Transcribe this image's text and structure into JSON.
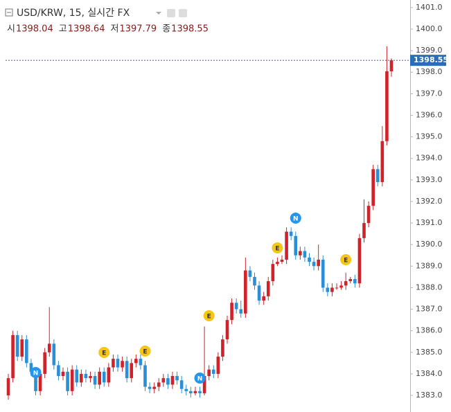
{
  "chart_data": {
    "type": "candlestick",
    "title": "USD/KRW, 15, 실시간 FX",
    "ohlc_labels": [
      "시",
      "고",
      "저",
      "종"
    ],
    "open": [
      1383.0,
      1383.8,
      1385.8,
      1384.8,
      1385.6,
      1384.5,
      1384.1,
      1383.2,
      1384.0,
      1385.0,
      1385.4,
      1384.4,
      1383.9,
      1384.1,
      1383.2,
      1384.2,
      1383.6,
      1384.0,
      1383.8,
      1383.9,
      1383.5,
      1384.1,
      1383.6,
      1384.3,
      1384.7,
      1384.3,
      1384.6,
      1383.8,
      1384.5,
      1384.7,
      1384.4,
      1383.4,
      1383.3,
      1383.4,
      1383.6,
      1383.8,
      1383.5,
      1383.9,
      1383.7,
      1383.3,
      1383.2,
      1383.1,
      1383.2,
      1383.1,
      1383.9,
      1384.2,
      1384.0,
      1384.8,
      1385.6,
      1386.5,
      1387.3,
      1387.0,
      1386.8,
      1388.8,
      1388.5,
      1388.1,
      1387.4,
      1387.6,
      1388.3,
      1389.1,
      1389.2,
      1389.3,
      1390.6,
      1390.4,
      1389.5,
      1389.7,
      1389.4,
      1389.2,
      1389.0,
      1389.3,
      1388.0,
      1387.8,
      1388.0,
      1388.0,
      1388.1,
      1388.3,
      1388.4,
      1388.2,
      1390.3,
      1391.0,
      1391.8,
      1393.5,
      1392.9,
      1394.8,
      1398.04
    ],
    "high": [
      1384.0,
      1386.0,
      1386.0,
      1385.8,
      1385.8,
      1384.7,
      1384.3,
      1384.2,
      1385.2,
      1387.1,
      1385.6,
      1384.6,
      1384.3,
      1384.3,
      1384.4,
      1384.4,
      1384.2,
      1384.2,
      1384.1,
      1384.1,
      1384.3,
      1384.3,
      1384.5,
      1384.9,
      1384.9,
      1384.8,
      1384.8,
      1384.7,
      1384.9,
      1384.9,
      1384.6,
      1383.6,
      1383.6,
      1383.8,
      1384.0,
      1384.0,
      1384.1,
      1384.1,
      1383.9,
      1383.5,
      1383.4,
      1383.4,
      1383.4,
      1386.2,
      1384.4,
      1384.4,
      1385.0,
      1385.8,
      1386.7,
      1387.5,
      1387.5,
      1387.4,
      1389.4,
      1389.0,
      1388.7,
      1388.3,
      1387.8,
      1388.5,
      1389.3,
      1389.4,
      1389.5,
      1390.8,
      1390.8,
      1390.6,
      1389.9,
      1389.9,
      1389.6,
      1389.4,
      1390.0,
      1389.5,
      1388.2,
      1388.2,
      1388.2,
      1388.3,
      1388.7,
      1388.5,
      1388.6,
      1390.5,
      1392.1,
      1392.0,
      1393.7,
      1393.7,
      1395.5,
      1399.2,
      1398.64
    ],
    "low": [
      1382.8,
      1383.6,
      1384.6,
      1384.6,
      1384.3,
      1383.9,
      1383.0,
      1383.0,
      1383.8,
      1384.8,
      1384.2,
      1383.7,
      1383.7,
      1383.0,
      1383.0,
      1383.4,
      1383.4,
      1383.6,
      1383.6,
      1383.3,
      1383.3,
      1383.4,
      1383.4,
      1384.1,
      1384.1,
      1384.1,
      1383.6,
      1383.6,
      1384.3,
      1384.2,
      1383.2,
      1383.1,
      1383.1,
      1383.2,
      1383.4,
      1383.3,
      1383.3,
      1383.5,
      1383.1,
      1383.0,
      1382.9,
      1383.0,
      1382.9,
      1383.0,
      1383.7,
      1383.8,
      1383.8,
      1384.6,
      1385.4,
      1386.3,
      1386.8,
      1386.6,
      1386.6,
      1388.3,
      1387.9,
      1387.2,
      1387.2,
      1387.4,
      1388.1,
      1389.0,
      1389.1,
      1389.1,
      1390.2,
      1389.3,
      1389.3,
      1389.2,
      1389.0,
      1388.8,
      1388.8,
      1387.8,
      1387.6,
      1387.6,
      1387.9,
      1387.9,
      1387.9,
      1388.2,
      1388.0,
      1388.0,
      1390.1,
      1390.8,
      1391.6,
      1392.7,
      1392.7,
      1394.6,
      1397.79
    ],
    "close": [
      1383.8,
      1385.8,
      1384.8,
      1385.6,
      1384.5,
      1384.1,
      1383.2,
      1384.0,
      1385.0,
      1385.4,
      1384.4,
      1383.9,
      1384.1,
      1383.2,
      1384.2,
      1383.6,
      1384.0,
      1383.8,
      1383.9,
      1383.5,
      1384.1,
      1383.6,
      1384.3,
      1384.7,
      1384.3,
      1384.6,
      1383.8,
      1384.5,
      1384.7,
      1384.4,
      1383.4,
      1383.3,
      1383.4,
      1383.6,
      1383.8,
      1383.5,
      1383.9,
      1383.7,
      1383.3,
      1383.2,
      1383.1,
      1383.2,
      1383.1,
      1383.9,
      1384.2,
      1384.0,
      1384.8,
      1385.6,
      1386.5,
      1387.3,
      1387.0,
      1386.8,
      1388.8,
      1388.5,
      1388.1,
      1387.4,
      1387.6,
      1388.3,
      1389.1,
      1389.2,
      1389.3,
      1390.6,
      1390.4,
      1389.5,
      1389.7,
      1389.4,
      1389.2,
      1389.0,
      1389.3,
      1388.0,
      1387.8,
      1388.0,
      1388.0,
      1388.1,
      1388.3,
      1388.4,
      1388.2,
      1390.3,
      1391.0,
      1391.8,
      1393.5,
      1392.9,
      1394.8,
      1398.04,
      1398.55
    ],
    "up_color": "#d0222a",
    "down_color": "#2a8fd6",
    "events": [
      "N",
      "E",
      "E",
      "N",
      "E",
      "E",
      "N",
      "E"
    ],
    "ylim": [
      1382.23,
      1401.35
    ],
    "yticks": [
      {
        "value": 1383,
        "label": "1383.0"
      },
      {
        "value": 1384,
        "label": "1384.0"
      },
      {
        "value": 1385,
        "label": "1385.0"
      },
      {
        "value": 1386,
        "label": "1386.0"
      },
      {
        "value": 1387,
        "label": "1387.0"
      },
      {
        "value": 1388,
        "label": "1388.0"
      },
      {
        "value": 1389,
        "label": "1389.0"
      },
      {
        "value": 1390,
        "label": "1390.0"
      },
      {
        "value": 1391,
        "label": "1391.0"
      },
      {
        "value": 1392,
        "label": "1392.0"
      },
      {
        "value": 1393,
        "label": "1393.0"
      },
      {
        "value": 1394,
        "label": "1394.0"
      },
      {
        "value": 1395,
        "label": "1395.0"
      },
      {
        "value": 1396,
        "label": "1396.0"
      },
      {
        "value": 1397,
        "label": "1397.0"
      },
      {
        "value": 1398,
        "label": "1398.0"
      },
      {
        "value": 1399,
        "label": "1399.0"
      },
      {
        "value": 1400,
        "label": "1400.0"
      },
      {
        "value": 1401,
        "label": "1401.0"
      }
    ]
  }
}
